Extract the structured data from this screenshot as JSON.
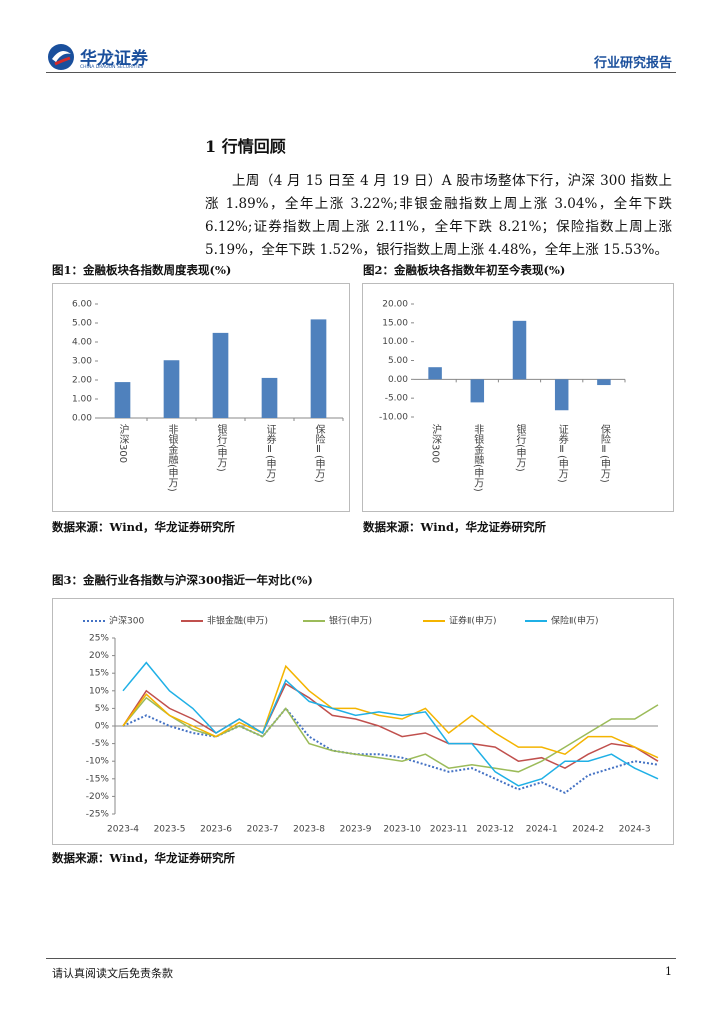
{
  "header": {
    "logo_text": "华龙证券",
    "logo_sub": "CHINA DRAGON SECURITIES",
    "report_type": "行业研究报告"
  },
  "section": {
    "title": "1 行情回顾",
    "paragraph": "上周（4 月 15 日至 4 月 19 日）A 股市场整体下行，沪深 300 指数上涨 1.89%，全年上涨 3.22%;非银金融指数上周上涨 3.04%，全年下跌 6.12%;证券指数上周上涨 2.11%，全年下跌 8.21%；保险指数上周上涨 5.19%，全年下跌 1.52%，银行指数上周上涨 4.48%，全年上涨 15.53%。"
  },
  "sources": [
    "数据来源：Wind，华龙证券研究所",
    "数据来源：Wind，华龙证券研究所",
    "数据来源：Wind，华龙证券研究所"
  ],
  "footer": {
    "disclaimer": "请认真阅读文后免责条款",
    "page": "1"
  },
  "chart_data": [
    {
      "type": "bar",
      "title": "图1：金融板块各指数周度表现(%)",
      "categories": [
        "沪深300",
        "非银金融(申万)",
        "银行(申万)",
        "证券Ⅱ(申万)",
        "保险Ⅱ(申万)"
      ],
      "values": [
        1.89,
        3.04,
        4.48,
        2.11,
        5.19
      ],
      "color": "#4f81bd",
      "ylim": [
        0,
        6
      ],
      "yticks": [
        {
          "value": 0,
          "label": "0.00"
        },
        {
          "value": 1,
          "label": "1.00"
        },
        {
          "value": 2,
          "label": "2.00"
        },
        {
          "value": 3,
          "label": "3.00"
        },
        {
          "value": 4,
          "label": "4.00"
        },
        {
          "value": 5,
          "label": "5.00"
        },
        {
          "value": 6,
          "label": "6.00"
        }
      ]
    },
    {
      "type": "bar",
      "title": "图2：金融板块各指数年初至今表现(%)",
      "categories": [
        "沪深300",
        "非银金融(申万)",
        "银行(申万)",
        "证券Ⅱ(申万)",
        "保险Ⅱ(申万)"
      ],
      "values": [
        3.22,
        -6.12,
        15.53,
        -8.21,
        -1.52
      ],
      "color": "#4f81bd",
      "ylim": [
        -10,
        20
      ],
      "yticks": [
        {
          "value": -10,
          "label": "-10.00"
        },
        {
          "value": -5,
          "label": "-5.00"
        },
        {
          "value": 0,
          "label": "0.00"
        },
        {
          "value": 5,
          "label": "5.00"
        },
        {
          "value": 10,
          "label": "10.00"
        },
        {
          "value": 15,
          "label": "15.00"
        },
        {
          "value": 20,
          "label": "20.00"
        }
      ]
    },
    {
      "type": "line",
      "title": "图3：金融行业各指数与沪深300指近一年对比(%)",
      "categories": [
        "2023-4",
        null,
        "2023-5",
        null,
        "2023-6",
        null,
        "2023-7",
        null,
        "2023-8",
        null,
        "2023-9",
        null,
        "2023-10",
        null,
        "2023-11",
        null,
        "2023-12",
        null,
        "2024-1",
        null,
        "2024-2",
        null,
        "2024-3",
        null
      ],
      "ylim": [
        -25,
        25
      ],
      "yticks": [
        {
          "value": -25,
          "label": "-25%"
        },
        {
          "value": -20,
          "label": "-20%"
        },
        {
          "value": -15,
          "label": "-15%"
        },
        {
          "value": -10,
          "label": "-10%"
        },
        {
          "value": -5,
          "label": "-5%"
        },
        {
          "value": 0,
          "label": "0%"
        },
        {
          "value": 5,
          "label": "5%"
        },
        {
          "value": 10,
          "label": "10%"
        },
        {
          "value": 15,
          "label": "15%"
        },
        {
          "value": 20,
          "label": "20%"
        },
        {
          "value": 25,
          "label": "25%"
        }
      ],
      "series": [
        {
          "name": "沪深300",
          "color": "#4472c4",
          "dashed": true,
          "values": [
            0,
            3,
            0,
            -2,
            -3,
            0,
            -3,
            5,
            -3,
            -7,
            -8,
            -8,
            -9,
            -11,
            -13,
            -12,
            -15,
            -18,
            -16,
            -19,
            -14,
            -12,
            -10,
            -11
          ]
        },
        {
          "name": "非银金融(申万)",
          "color": "#c0504d",
          "values": [
            0,
            10,
            5,
            2,
            -2,
            2,
            -2,
            12,
            8,
            3,
            2,
            0,
            -3,
            -2,
            -5,
            -5,
            -6,
            -10,
            -9,
            -12,
            -8,
            -5,
            -6,
            -10
          ]
        },
        {
          "name": "银行(申万)",
          "color": "#9bbb59",
          "values": [
            0,
            8,
            3,
            -1,
            -3,
            0,
            -3,
            5,
            -5,
            -7,
            -8,
            -9,
            -10,
            -8,
            -12,
            -11,
            -12,
            -13,
            -10,
            -6,
            -2,
            2,
            2,
            6
          ]
        },
        {
          "name": "证券Ⅱ(申万)",
          "color": "#f4b400",
          "values": [
            0,
            9,
            3,
            0,
            -3,
            1,
            -2,
            17,
            10,
            5,
            5,
            3,
            2,
            5,
            -2,
            3,
            -2,
            -6,
            -6,
            -8,
            -3,
            -3,
            -6,
            -9
          ]
        },
        {
          "name": "保险Ⅱ(申万)",
          "color": "#1fb0e6",
          "values": [
            10,
            18,
            10,
            5,
            -2,
            2,
            -2,
            13,
            7,
            5,
            3,
            4,
            3,
            4,
            -5,
            -5,
            -13,
            -17,
            -15,
            -10,
            -10,
            -8,
            -12,
            -15
          ]
        }
      ]
    }
  ]
}
